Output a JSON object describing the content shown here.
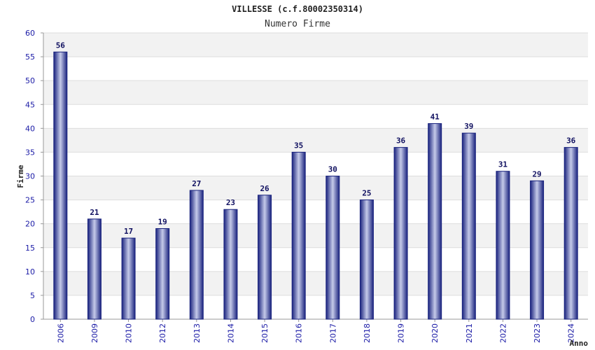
{
  "chart_data": {
    "type": "bar",
    "title": "VILLESSE (c.f.80002350314)",
    "subtitle": "Numero Firme",
    "xlabel": "Anno",
    "ylabel": "Firme",
    "ylim": [
      0,
      60
    ],
    "ytick_step": 5,
    "grid": true,
    "categories": [
      "2006",
      "2009",
      "2010",
      "2012",
      "2013",
      "2014",
      "2015",
      "2016",
      "2017",
      "2018",
      "2019",
      "2020",
      "2021",
      "2022",
      "2023",
      "2024"
    ],
    "values": [
      56,
      21,
      17,
      19,
      27,
      23,
      26,
      35,
      30,
      25,
      36,
      41,
      39,
      31,
      29,
      36
    ],
    "colors": {
      "bar_dark": "#1a237e",
      "bar_light": "#c5cae9",
      "band": "#f2f2f2",
      "tick": "#1a1aa6"
    }
  }
}
